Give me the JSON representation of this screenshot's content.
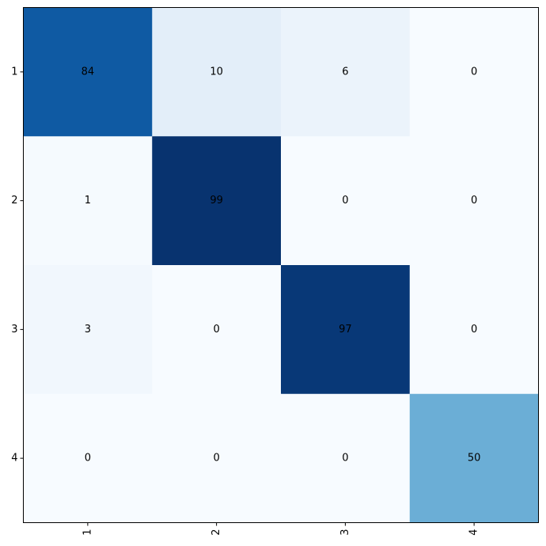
{
  "chart_data": {
    "type": "heatmap",
    "title": "",
    "xlabel": "",
    "ylabel": "",
    "x_categories": [
      "1",
      "2",
      "3",
      "4"
    ],
    "y_categories": [
      "1",
      "2",
      "3",
      "4"
    ],
    "values": [
      [
        84,
        10,
        6,
        0
      ],
      [
        1,
        99,
        0,
        0
      ],
      [
        3,
        0,
        97,
        0
      ],
      [
        0,
        0,
        0,
        50
      ]
    ],
    "value_range": [
      0,
      100
    ],
    "colormap": "Blues",
    "x_tick_rotation": "vertical",
    "grid": false,
    "legend": "none"
  }
}
